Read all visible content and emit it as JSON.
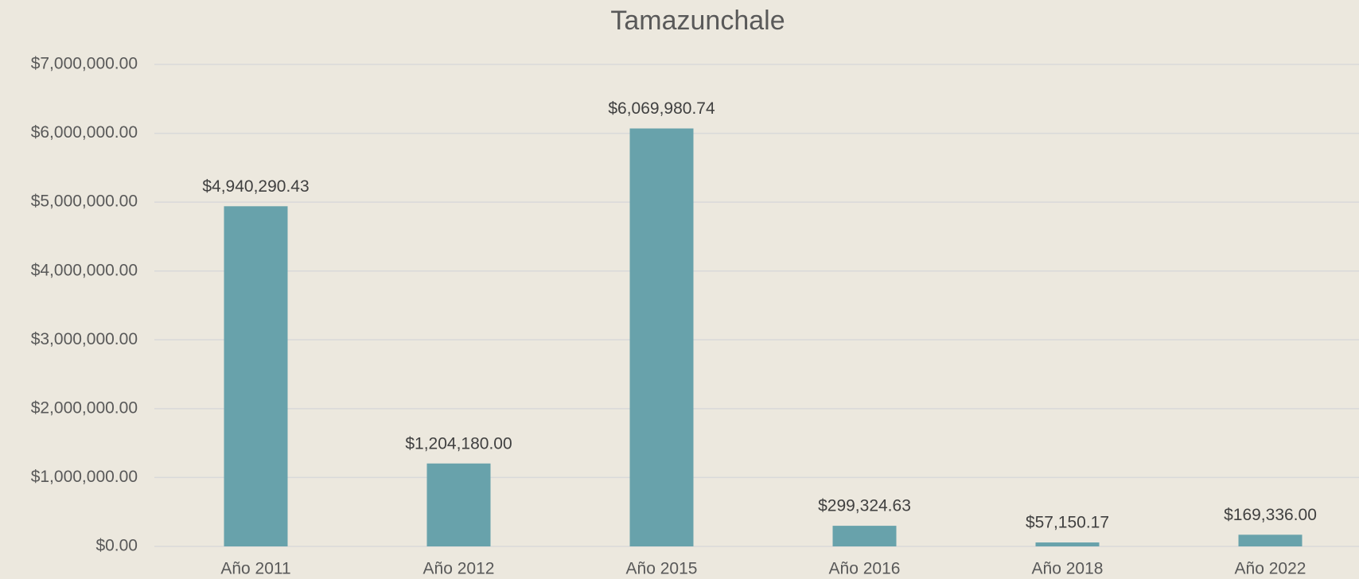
{
  "chart_data": {
    "type": "bar",
    "title": "Tamazunchale",
    "categories": [
      "Año 2011",
      "Año 2012",
      "Año 2015",
      "Año 2016",
      "Año 2018",
      "Año 2022"
    ],
    "values": [
      4940290.43,
      1204180.0,
      6069980.74,
      299324.63,
      57150.17,
      169336.0
    ],
    "value_labels": [
      "$4,940,290.43",
      "$1,204,180.00",
      "$6,069,980.74",
      "$299,324.63",
      "$57,150.17",
      "$169,336.00"
    ],
    "color": "#68a2ab",
    "ylim": [
      0,
      7000000
    ],
    "yticks": [
      {
        "value": 0,
        "label": "$0.00"
      },
      {
        "value": 1000000,
        "label": "$1,000,000.00"
      },
      {
        "value": 2000000,
        "label": "$2,000,000.00"
      },
      {
        "value": 3000000,
        "label": "$3,000,000.00"
      },
      {
        "value": 4000000,
        "label": "$4,000,000.00"
      },
      {
        "value": 5000000,
        "label": "$5,000,000.00"
      },
      {
        "value": 6000000,
        "label": "$6,000,000.00"
      },
      {
        "value": 7000000,
        "label": "$7,000,000.00"
      }
    ],
    "grid": true
  }
}
